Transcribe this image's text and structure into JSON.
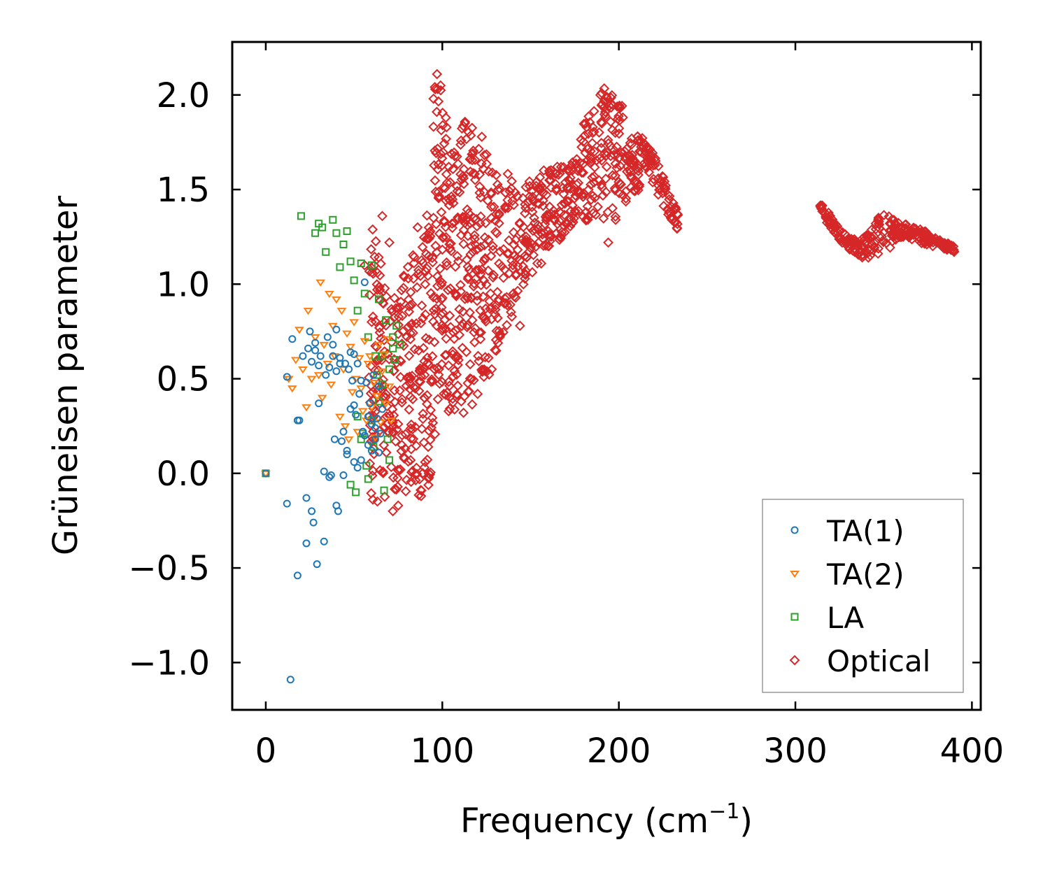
{
  "chart_data": {
    "type": "scatter",
    "title": "",
    "xlabel": "Frequency (cm",
    "xlabel_sup": "−1",
    "xlabel_close": ")",
    "ylabel": "Grüneisen parameter",
    "xlim": [
      -19,
      405
    ],
    "ylim": [
      -1.25,
      2.28
    ],
    "xticks": [
      0,
      100,
      200,
      300,
      400
    ],
    "xtick_labels": [
      "0",
      "100",
      "200",
      "300",
      "400"
    ],
    "yticks": [
      -1.0,
      -0.5,
      0.0,
      0.5,
      1.0,
      1.5,
      2.0
    ],
    "ytick_labels": [
      "−1.0",
      "−0.5",
      "0.0",
      "0.5",
      "1.0",
      "1.5",
      "2.0"
    ],
    "legend_position": "lower-right",
    "grid": false,
    "series": [
      {
        "name": "TA(1)",
        "label": "TA(1)",
        "marker": "circle",
        "color": "#1f77b4",
        "x": [
          0,
          12,
          14,
          15,
          18,
          19,
          21,
          23,
          24,
          25,
          26,
          27,
          28,
          29,
          30,
          31,
          33,
          34,
          35,
          36,
          37,
          38,
          39,
          40,
          40,
          41,
          42,
          43,
          44,
          45,
          46,
          47,
          48,
          49,
          50,
          50,
          51,
          52,
          53,
          54,
          55,
          56,
          57,
          58,
          59,
          60,
          61,
          62,
          63,
          64,
          65,
          12,
          18,
          23,
          26,
          28,
          30,
          33,
          36,
          38,
          40,
          42,
          44,
          46,
          48,
          50,
          52,
          54,
          56,
          58,
          60,
          62,
          64,
          66
        ],
        "y": [
          0,
          -0.16,
          -1.09,
          0.71,
          -0.54,
          0.28,
          0.62,
          -0.37,
          0.66,
          0.75,
          0.59,
          -0.26,
          0.65,
          -0.48,
          0.37,
          0.62,
          -0.36,
          0.52,
          0.72,
          0.56,
          -0.01,
          0.68,
          0.18,
          0.54,
          0.76,
          -0.2,
          0.61,
          0.17,
          -0.01,
          0.58,
          0.12,
          0.55,
          0.34,
          0.49,
          0.63,
          0.06,
          0.31,
          0.58,
          0.42,
          0.07,
          0.22,
          1.01,
          0.48,
          0.15,
          0.37,
          0.26,
          0.52,
          0.18,
          0.29,
          0.11,
          0.21,
          0.51,
          0.28,
          -0.13,
          -0.2,
          0.69,
          0.57,
          0.01,
          -0.02,
          0.62,
          -0.17,
          0.58,
          0.22,
          0.1,
          0.64,
          0.36,
          0.03,
          0.49,
          0.2,
          0.3,
          0.12,
          0.24,
          0.46,
          0.34
        ]
      },
      {
        "name": "TA(2)",
        "label": "TA(2)",
        "marker": "triangle-down",
        "color": "#ff7f0e",
        "x": [
          0,
          13,
          15,
          17,
          19,
          21,
          23,
          24,
          26,
          28,
          30,
          31,
          32,
          33,
          35,
          36,
          37,
          38,
          39,
          40,
          42,
          43,
          44,
          45,
          46,
          47,
          48,
          49,
          50,
          51,
          52,
          53,
          54,
          55,
          56,
          57,
          58,
          59,
          60,
          61,
          62,
          63,
          64,
          65,
          66,
          67,
          68,
          69,
          70,
          71
        ],
        "y": [
          0,
          0.5,
          0.45,
          0.6,
          0.76,
          0.55,
          0.35,
          0.86,
          0.5,
          0.72,
          0.52,
          1.01,
          0.4,
          0.68,
          0.58,
          0.95,
          0.47,
          0.78,
          0.62,
          0.92,
          0.3,
          0.86,
          0.55,
          0.25,
          0.74,
          0.18,
          0.67,
          0.43,
          0.8,
          0.5,
          0.22,
          0.61,
          0.45,
          0.33,
          0.7,
          0.28,
          0.58,
          0.62,
          0.35,
          0.48,
          0.19,
          0.41,
          0.68,
          0.27,
          0.54,
          0.63,
          0.37,
          0.71,
          0.46,
          0.28
        ]
      },
      {
        "name": "LA",
        "label": "LA",
        "marker": "square",
        "color": "#2ca02c",
        "x": [
          0,
          20,
          28,
          30,
          32,
          34,
          38,
          40,
          42,
          44,
          46,
          48,
          50,
          52,
          54,
          56,
          58,
          60,
          62,
          64,
          66,
          68,
          70,
          72,
          74,
          76,
          52,
          55,
          58,
          61,
          64,
          67,
          70,
          73,
          48,
          51,
          54,
          57,
          60,
          63,
          66,
          69,
          72
        ],
        "y": [
          0,
          1.36,
          1.27,
          1.32,
          1.3,
          1.17,
          1.34,
          1.27,
          1.09,
          1.21,
          1.28,
          1.12,
          1.02,
          0.86,
          1.11,
          0.95,
          0.72,
          1.1,
          0.62,
          0.92,
          0.47,
          0.81,
          0.55,
          0.66,
          0.78,
          0.68,
          0.3,
          0.21,
          -0.03,
          0.14,
          0.38,
          -0.09,
          0.07,
          0.6,
          -0.06,
          -0.1,
          0.18,
          0.04,
          0.28,
          0.52,
          0.62,
          0.18,
          0.72
        ]
      },
      {
        "name": "Optical",
        "label": "Optical",
        "marker": "diamond",
        "color": "#d62728",
        "bands": [
          {
            "x": [
              58,
              62,
              66,
              70,
              74,
              78,
              82,
              86,
              90,
              94,
              96,
              98,
              100,
              104,
              108,
              112,
              116,
              120,
              124,
              128,
              132,
              136,
              140,
              144,
              148,
              152,
              156,
              160,
              164,
              168,
              172,
              176,
              180,
              184,
              188,
              192,
              196,
              200,
              204,
              208,
              212
            ],
            "lo": [
              -0.12,
              -0.16,
              -0.15,
              -0.1,
              -0.12,
              -0.1,
              -0.1,
              -0.12,
              -0.15,
              0.0,
              0.2,
              0.3,
              0.4,
              0.3,
              0.35,
              0.35,
              0.35,
              0.4,
              0.45,
              0.55,
              0.7,
              0.75,
              0.8,
              0.95,
              1.05,
              1.05,
              1.1,
              1.2,
              1.2,
              1.25,
              1.3,
              1.35,
              1.3,
              1.35,
              1.35,
              1.3,
              1.3,
              1.35,
              1.4,
              1.45,
              1.5
            ],
            "hi": [
              1.2,
              1.35,
              1.05,
              0.9,
              0.95,
              1.05,
              1.15,
              1.3,
              1.3,
              1.6,
              2.1,
              2.12,
              2.05,
              1.85,
              1.85,
              1.9,
              1.9,
              1.95,
              1.75,
              1.7,
              1.55,
              1.6,
              1.55,
              1.45,
              1.6,
              1.58,
              1.62,
              1.68,
              1.64,
              1.62,
              1.62,
              1.7,
              1.85,
              1.95,
              2.02,
              2.08,
              2.1,
              2.06,
              1.8,
              1.78,
              1.75
            ]
          },
          {
            "x": [
              210,
              216,
              222,
              228,
              234
            ],
            "lo": [
              1.7,
              1.6,
              1.48,
              1.36,
              1.26
            ],
            "hi": [
              1.8,
              1.75,
              1.64,
              1.5,
              1.36
            ]
          },
          {
            "x": [
              314,
              320,
              326,
              332,
              338,
              344,
              350,
              356,
              362,
              368,
              374,
              380,
              386,
              390
            ],
            "lo": [
              1.36,
              1.3,
              1.22,
              1.17,
              1.14,
              1.12,
              1.15,
              1.22,
              1.25,
              1.22,
              1.2,
              1.2,
              1.18,
              1.17
            ],
            "hi": [
              1.43,
              1.37,
              1.28,
              1.24,
              1.24,
              1.3,
              1.4,
              1.36,
              1.33,
              1.3,
              1.28,
              1.24,
              1.22,
              1.2
            ]
          }
        ],
        "outliers": {
          "x": [
            66,
            70,
            72,
            75,
            78,
            82,
            86,
            88,
            90,
            92,
            95,
            97,
            99,
            102,
            108,
            112,
            120,
            128,
            132,
            140,
            144,
            150,
            160,
            170,
            180,
            190,
            194,
            198,
            56,
            60,
            64,
            68,
            72,
            76
          ],
          "y": [
            1.36,
            1.22,
            -0.2,
            -0.17,
            0.98,
            0.5,
            1.3,
            -0.12,
            0.52,
            0.14,
            1.98,
            2.11,
            2.05,
            1.88,
            0.62,
            0.32,
            0.42,
            0.55,
            0.92,
            1.1,
            0.78,
            1.22,
            1.28,
            1.32,
            1.48,
            1.72,
            1.22,
            1.8,
            1.1,
            0.8,
            0.6,
            0.42,
            0.22,
            0.02
          ]
        }
      }
    ]
  }
}
